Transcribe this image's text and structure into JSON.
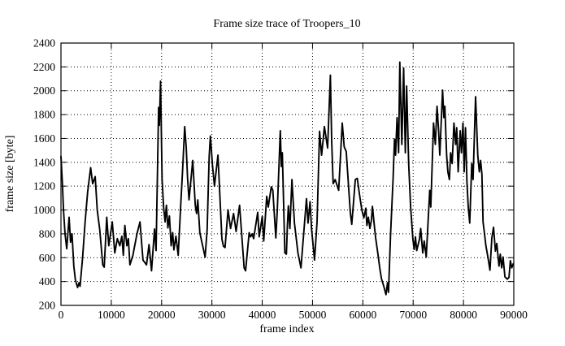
{
  "background_color": "#ffffff",
  "foreground_color": "#000000",
  "chart_data": {
    "type": "line",
    "title": "Frame size trace of Troopers_10",
    "xlabel": "frame index",
    "ylabel": "frame size [byte]",
    "xlim": [
      0,
      90000
    ],
    "ylim": [
      200,
      2400
    ],
    "xticks": [
      0,
      10000,
      20000,
      30000,
      40000,
      50000,
      60000,
      70000,
      80000,
      90000
    ],
    "yticks": [
      200,
      400,
      600,
      800,
      1000,
      1200,
      1400,
      1600,
      1800,
      2000,
      2200,
      2400
    ],
    "grid": true,
    "legend_position": "none",
    "line_color": "#000000",
    "series": [
      {
        "name": "frame size",
        "points": [
          [
            0,
            1450
          ],
          [
            300,
            1200
          ],
          [
            500,
            1000
          ],
          [
            800,
            800
          ],
          [
            1150,
            675
          ],
          [
            1620,
            940
          ],
          [
            1900,
            730
          ],
          [
            2200,
            800
          ],
          [
            2550,
            530
          ],
          [
            2860,
            415
          ],
          [
            3300,
            350
          ],
          [
            3600,
            390
          ],
          [
            3800,
            360
          ],
          [
            4300,
            600
          ],
          [
            4800,
            900
          ],
          [
            5300,
            1150
          ],
          [
            5900,
            1355
          ],
          [
            6300,
            1220
          ],
          [
            6800,
            1280
          ],
          [
            7200,
            1000
          ],
          [
            7700,
            835
          ],
          [
            8300,
            540
          ],
          [
            8600,
            520
          ],
          [
            9100,
            940
          ],
          [
            9500,
            700
          ],
          [
            10200,
            900
          ],
          [
            10700,
            640
          ],
          [
            11200,
            760
          ],
          [
            11700,
            700
          ],
          [
            12100,
            780
          ],
          [
            12400,
            620
          ],
          [
            12700,
            870
          ],
          [
            13100,
            700
          ],
          [
            13400,
            760
          ],
          [
            13700,
            540
          ],
          [
            14300,
            620
          ],
          [
            14600,
            690
          ],
          [
            15100,
            800
          ],
          [
            15700,
            900
          ],
          [
            16300,
            580
          ],
          [
            17000,
            540
          ],
          [
            17500,
            710
          ],
          [
            18000,
            490
          ],
          [
            18600,
            840
          ],
          [
            18900,
            660
          ],
          [
            19400,
            1860
          ],
          [
            19550,
            1710
          ],
          [
            19800,
            2080
          ],
          [
            20100,
            1250
          ],
          [
            20400,
            1020
          ],
          [
            20700,
            900
          ],
          [
            20950,
            1040
          ],
          [
            21250,
            850
          ],
          [
            21550,
            950
          ],
          [
            21900,
            700
          ],
          [
            22200,
            810
          ],
          [
            22450,
            665
          ],
          [
            22850,
            780
          ],
          [
            23300,
            620
          ],
          [
            23800,
            1040
          ],
          [
            24200,
            1360
          ],
          [
            24600,
            1700
          ],
          [
            24900,
            1520
          ],
          [
            25150,
            1270
          ],
          [
            25450,
            1085
          ],
          [
            26200,
            1415
          ],
          [
            26700,
            1040
          ],
          [
            26950,
            970
          ],
          [
            27200,
            1085
          ],
          [
            27600,
            810
          ],
          [
            28000,
            730
          ],
          [
            28300,
            675
          ],
          [
            28650,
            605
          ],
          [
            29050,
            835
          ],
          [
            29450,
            1450
          ],
          [
            29700,
            1620
          ],
          [
            30100,
            1380
          ],
          [
            30500,
            1200
          ],
          [
            31200,
            1460
          ],
          [
            32000,
            755
          ],
          [
            32300,
            695
          ],
          [
            32600,
            685
          ],
          [
            33200,
            1000
          ],
          [
            33700,
            845
          ],
          [
            34300,
            970
          ],
          [
            34800,
            820
          ],
          [
            35500,
            1040
          ],
          [
            36400,
            515
          ],
          [
            36700,
            490
          ],
          [
            37400,
            810
          ],
          [
            37700,
            775
          ],
          [
            38000,
            800
          ],
          [
            38300,
            760
          ],
          [
            39100,
            980
          ],
          [
            39400,
            775
          ],
          [
            40000,
            945
          ],
          [
            40300,
            740
          ],
          [
            40900,
            1115
          ],
          [
            41200,
            1025
          ],
          [
            41800,
            1195
          ],
          [
            42100,
            1165
          ],
          [
            42700,
            765
          ],
          [
            43000,
            1000
          ],
          [
            43600,
            1665
          ],
          [
            43800,
            1365
          ],
          [
            44000,
            1480
          ],
          [
            44500,
            640
          ],
          [
            44800,
            630
          ],
          [
            45000,
            865
          ],
          [
            45200,
            1035
          ],
          [
            45500,
            845
          ],
          [
            45900,
            1255
          ],
          [
            46400,
            890
          ],
          [
            47100,
            640
          ],
          [
            47700,
            515
          ],
          [
            48800,
            1095
          ],
          [
            49100,
            890
          ],
          [
            49500,
            1070
          ],
          [
            49800,
            845
          ],
          [
            50400,
            580
          ],
          [
            50900,
            900
          ],
          [
            51400,
            1660
          ],
          [
            51800,
            1460
          ],
          [
            52100,
            1580
          ],
          [
            52350,
            1700
          ],
          [
            53000,
            1520
          ],
          [
            53550,
            2130
          ],
          [
            53800,
            1580
          ],
          [
            54100,
            1220
          ],
          [
            54500,
            1255
          ],
          [
            55200,
            1165
          ],
          [
            55900,
            1730
          ],
          [
            56300,
            1530
          ],
          [
            56700,
            1490
          ],
          [
            57500,
            980
          ],
          [
            57800,
            880
          ],
          [
            58500,
            1255
          ],
          [
            58900,
            1265
          ],
          [
            59300,
            1140
          ],
          [
            59800,
            1000
          ],
          [
            60200,
            935
          ],
          [
            60600,
            1015
          ],
          [
            60800,
            870
          ],
          [
            61100,
            940
          ],
          [
            61400,
            845
          ],
          [
            61700,
            915
          ],
          [
            61900,
            1030
          ],
          [
            62300,
            860
          ],
          [
            62550,
            765
          ],
          [
            63000,
            630
          ],
          [
            63350,
            515
          ],
          [
            63700,
            425
          ],
          [
            64200,
            355
          ],
          [
            64600,
            290
          ],
          [
            64900,
            390
          ],
          [
            65100,
            310
          ],
          [
            65500,
            790
          ],
          [
            66000,
            1255
          ],
          [
            66300,
            1595
          ],
          [
            66500,
            1460
          ],
          [
            66800,
            1775
          ],
          [
            67100,
            1480
          ],
          [
            67350,
            2240
          ],
          [
            67750,
            1550
          ],
          [
            68100,
            2190
          ],
          [
            68450,
            1480
          ],
          [
            68700,
            2040
          ],
          [
            69100,
            1390
          ],
          [
            69500,
            1025
          ],
          [
            69950,
            755
          ],
          [
            70200,
            670
          ],
          [
            70450,
            775
          ],
          [
            70700,
            660
          ],
          [
            71250,
            755
          ],
          [
            71500,
            845
          ],
          [
            71900,
            640
          ],
          [
            72200,
            740
          ],
          [
            72600,
            605
          ],
          [
            73300,
            1165
          ],
          [
            73500,
            1025
          ],
          [
            74050,
            1730
          ],
          [
            74400,
            1550
          ],
          [
            74750,
            1870
          ],
          [
            75050,
            1665
          ],
          [
            75300,
            1460
          ],
          [
            75850,
            2005
          ],
          [
            76100,
            1775
          ],
          [
            76300,
            1870
          ],
          [
            76650,
            1460
          ],
          [
            76900,
            1320
          ],
          [
            77200,
            1255
          ],
          [
            77450,
            1480
          ],
          [
            77750,
            1390
          ],
          [
            78100,
            1730
          ],
          [
            78450,
            1550
          ],
          [
            78650,
            1690
          ],
          [
            78950,
            1320
          ],
          [
            79350,
            1665
          ],
          [
            79600,
            1480
          ],
          [
            79900,
            1730
          ],
          [
            80150,
            1320
          ],
          [
            80400,
            1690
          ],
          [
            80700,
            1230
          ],
          [
            80950,
            1025
          ],
          [
            81250,
            890
          ],
          [
            81650,
            1390
          ],
          [
            81900,
            1255
          ],
          [
            82400,
            1950
          ],
          [
            82850,
            1460
          ],
          [
            83150,
            1320
          ],
          [
            83400,
            1415
          ],
          [
            83670,
            1300
          ],
          [
            83900,
            900
          ],
          [
            84180,
            800
          ],
          [
            84450,
            700
          ],
          [
            84880,
            600
          ],
          [
            85270,
            495
          ],
          [
            85640,
            765
          ],
          [
            85970,
            855
          ],
          [
            86350,
            655
          ],
          [
            86620,
            720
          ],
          [
            87060,
            530
          ],
          [
            87320,
            630
          ],
          [
            87590,
            515
          ],
          [
            87870,
            605
          ],
          [
            88240,
            440
          ],
          [
            88700,
            420
          ],
          [
            89050,
            435
          ],
          [
            89320,
            575
          ],
          [
            89600,
            515
          ],
          [
            89900,
            550
          ]
        ]
      }
    ]
  }
}
